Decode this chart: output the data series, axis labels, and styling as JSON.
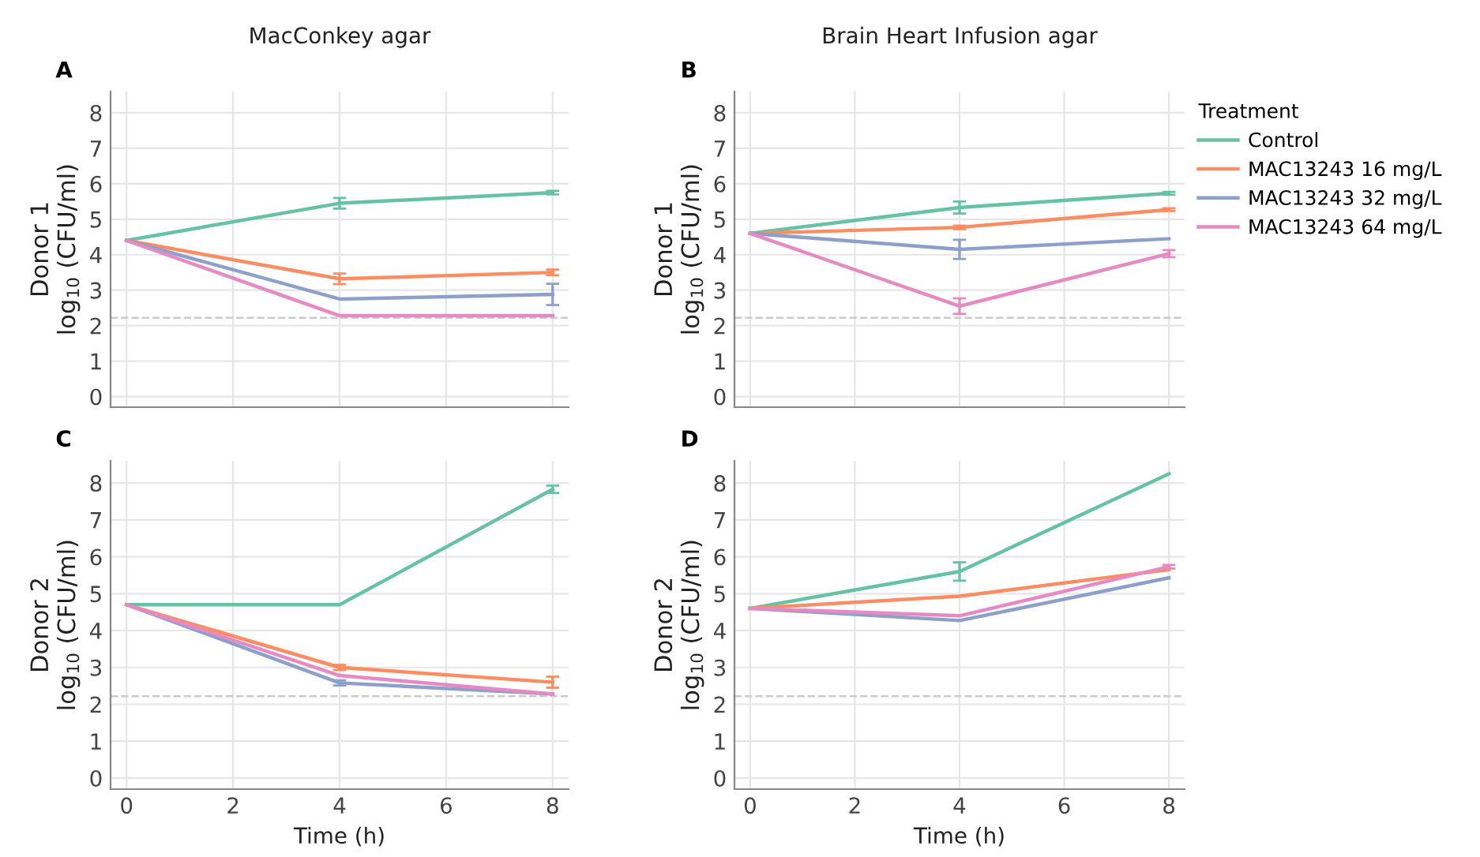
{
  "chart_data": [
    {
      "type": "line",
      "title": "MacConkey agar",
      "annotations": [
        "A"
      ],
      "ylabel": "Donor 1\nlog$_{10}$ (CFU/ml)",
      "x": [
        0,
        4,
        8
      ],
      "xlim": [
        -0.3,
        8.3
      ],
      "xticks": [
        0,
        2,
        4,
        6,
        8
      ],
      "ylim": [
        -0.3,
        8.6
      ],
      "yticks": [
        0,
        1,
        2,
        3,
        4,
        5,
        6,
        7,
        8
      ],
      "tick_labels": "y",
      "grid": true,
      "legend": false,
      "line_style": "solid",
      "marker": "none",
      "ref_lines": [
        {
          "axis": "y",
          "value": 2.22,
          "color": "#cccccc",
          "line_style": "dashed"
        }
      ],
      "series": [
        {
          "color": "#66c2a5",
          "values": [
            4.4,
            5.45,
            5.75
          ],
          "errors": [
            null,
            0.15,
            0.05
          ]
        },
        {
          "color": "#fc8d62",
          "values": [
            4.4,
            3.32,
            3.5
          ],
          "errors": [
            null,
            0.15,
            0.08
          ]
        },
        {
          "color": "#8da0cb",
          "values": [
            4.4,
            2.75,
            2.88
          ],
          "errors": [
            null,
            null,
            0.3
          ]
        },
        {
          "color": "#e78ac3",
          "values": [
            4.4,
            2.28,
            2.28
          ],
          "errors": [
            null,
            null,
            null
          ]
        }
      ]
    },
    {
      "type": "line",
      "title": "Brain Heart Infusion agar",
      "annotations": [
        "B"
      ],
      "ylabel": "Donor 1\nlog$_{10}$ (CFU/ml)",
      "x": [
        0,
        4,
        8
      ],
      "xlim": [
        -0.3,
        8.3
      ],
      "xticks": [
        0,
        2,
        4,
        6,
        8
      ],
      "ylim": [
        -0.3,
        8.6
      ],
      "yticks": [
        0,
        1,
        2,
        3,
        4,
        5,
        6,
        7,
        8
      ],
      "tick_labels": "y",
      "grid": true,
      "legend": "right",
      "legend_title": "Treatment",
      "line_style": "solid",
      "marker": "none",
      "ref_lines": [
        {
          "axis": "y",
          "value": 2.22,
          "color": "#cccccc",
          "line_style": "dashed"
        }
      ],
      "series": [
        {
          "name": "Control",
          "color": "#66c2a5",
          "values": [
            4.6,
            5.33,
            5.73
          ],
          "errors": [
            null,
            0.17,
            0.04
          ]
        },
        {
          "name": "MAC13243 16 mg/L",
          "color": "#fc8d62",
          "values": [
            4.6,
            4.77,
            5.27
          ],
          "errors": [
            null,
            0.05,
            0.04
          ]
        },
        {
          "name": "MAC13243 32 mg/L",
          "color": "#8da0cb",
          "values": [
            4.6,
            4.15,
            4.45
          ],
          "errors": [
            null,
            0.27,
            null
          ]
        },
        {
          "name": "MAC13243 64 mg/L",
          "color": "#e78ac3",
          "values": [
            4.6,
            2.55,
            4.03
          ],
          "errors": [
            null,
            0.22,
            0.1
          ]
        }
      ]
    },
    {
      "type": "line",
      "annotations": [
        "C"
      ],
      "xlabel": "Time (h)",
      "ylabel": "Donor 2\nlog$_{10}$ (CFU/ml)",
      "x": [
        0,
        4,
        8
      ],
      "xlim": [
        -0.3,
        8.3
      ],
      "xticks": [
        0,
        2,
        4,
        6,
        8
      ],
      "ylim": [
        -0.3,
        8.6
      ],
      "yticks": [
        0,
        1,
        2,
        3,
        4,
        5,
        6,
        7,
        8
      ],
      "grid": true,
      "legend": false,
      "line_style": "solid",
      "marker": "none",
      "ref_lines": [
        {
          "axis": "y",
          "value": 2.22,
          "color": "#cccccc",
          "line_style": "dashed"
        }
      ],
      "series": [
        {
          "color": "#66c2a5",
          "values": [
            4.7,
            4.7,
            7.83
          ],
          "errors": [
            null,
            null,
            0.1
          ]
        },
        {
          "color": "#fc8d62",
          "values": [
            4.7,
            3.0,
            2.6
          ],
          "errors": [
            null,
            0.07,
            0.15
          ]
        },
        {
          "color": "#8da0cb",
          "values": [
            4.7,
            2.58,
            2.28
          ],
          "errors": [
            null,
            0.07,
            null
          ]
        },
        {
          "color": "#e78ac3",
          "values": [
            4.7,
            2.78,
            2.28
          ],
          "errors": [
            null,
            null,
            null
          ]
        }
      ]
    },
    {
      "type": "line",
      "annotations": [
        "D"
      ],
      "xlabel": "Time (h)",
      "ylabel": "Donor 2\nlog$_{10}$ (CFU/ml)",
      "x": [
        0,
        4,
        8
      ],
      "xlim": [
        -0.3,
        8.3
      ],
      "xticks": [
        0,
        2,
        4,
        6,
        8
      ],
      "ylim": [
        -0.3,
        8.6
      ],
      "yticks": [
        0,
        1,
        2,
        3,
        4,
        5,
        6,
        7,
        8
      ],
      "grid": true,
      "legend": false,
      "line_style": "solid",
      "marker": "none",
      "ref_lines": [
        {
          "axis": "y",
          "value": 2.22,
          "color": "#cccccc",
          "line_style": "dashed"
        }
      ],
      "series": [
        {
          "color": "#66c2a5",
          "values": [
            4.6,
            5.6,
            8.25
          ],
          "errors": [
            null,
            0.25,
            null
          ]
        },
        {
          "color": "#fc8d62",
          "values": [
            4.6,
            4.93,
            5.65
          ],
          "errors": [
            null,
            null,
            null
          ]
        },
        {
          "color": "#8da0cb",
          "values": [
            4.6,
            4.27,
            5.43
          ],
          "errors": [
            null,
            null,
            null
          ]
        },
        {
          "color": "#e78ac3",
          "values": [
            4.6,
            4.4,
            5.73
          ],
          "errors": [
            null,
            null,
            0.05
          ]
        }
      ]
    }
  ]
}
